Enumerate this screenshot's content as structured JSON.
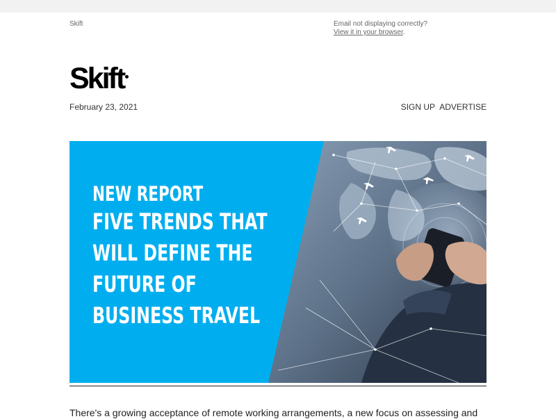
{
  "preheader": {
    "brand": "Skift",
    "notice": "Email not displaying correctly?",
    "browser_link": "View it in your browser",
    "trailing_period": "."
  },
  "logo": {
    "text": "Skift"
  },
  "header": {
    "date": "February 23, 2021",
    "nav": [
      "SIGN UP",
      "ADVERTISE"
    ]
  },
  "hero": {
    "kicker": "NEW REPORT",
    "headline": "FIVE TRENDS THAT WILL DEFINE THE FUTURE OF BUSINESS TRAVEL",
    "background_color": "#00aeef"
  },
  "body": {
    "intro": "There's a growing acceptance of remote working arrangements, a new focus on assessing and"
  },
  "colors": {
    "accent": "#00aeef",
    "text": "#333333"
  }
}
